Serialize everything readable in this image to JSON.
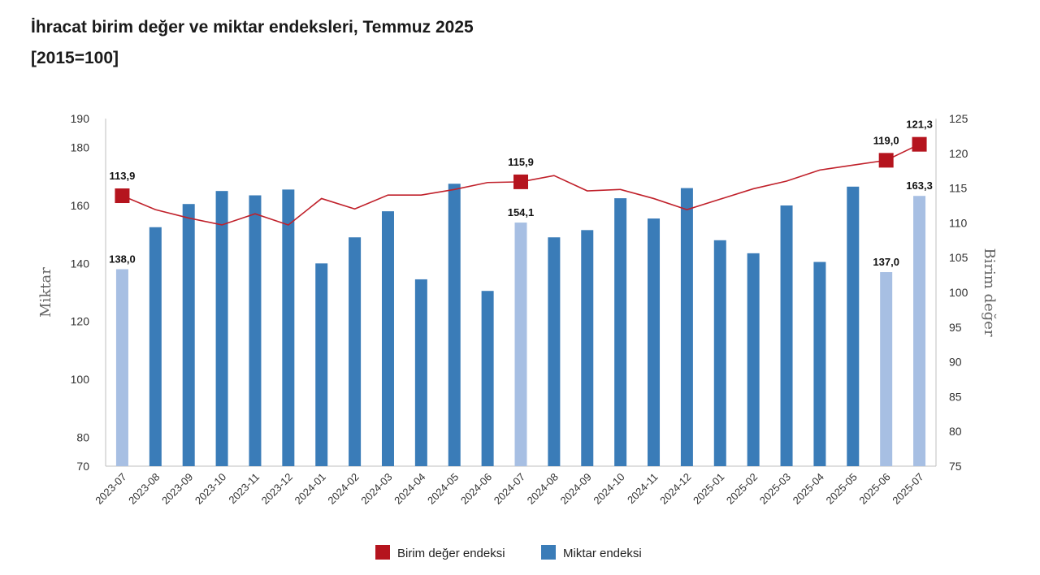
{
  "chart_data": {
    "type": "bar",
    "title": "İhracat birim değer ve miktar endeksleri, Temmuz 2025",
    "subtitle": "[2015=100]",
    "categories": [
      "2023-07",
      "2023-08",
      "2023-09",
      "2023-10",
      "2023-11",
      "2023-12",
      "2024-01",
      "2024-02",
      "2024-03",
      "2024-04",
      "2024-05",
      "2024-06",
      "2024-07",
      "2024-08",
      "2024-09",
      "2024-10",
      "2024-11",
      "2024-12",
      "2025-01",
      "2025-02",
      "2025-03",
      "2025-04",
      "2025-05",
      "2025-06",
      "2025-07"
    ],
    "y_left": {
      "label": "Miktar",
      "range": [
        70,
        190
      ],
      "ticks": [
        "70",
        "80",
        "100",
        "120",
        "140",
        "160",
        "180",
        "190"
      ]
    },
    "y_right": {
      "label": "Birim değer",
      "range": [
        75,
        125
      ],
      "ticks": [
        "75",
        "80",
        "85",
        "90",
        "95",
        "100",
        "105",
        "110",
        "115",
        "120",
        "125"
      ]
    },
    "series": [
      {
        "name": "Miktar endeksi",
        "type": "bar",
        "axis": "left",
        "color": "#3a7cb8",
        "highlight_color": "#a7bfe3",
        "highlight_indices": [
          0,
          12,
          23,
          24
        ],
        "values": [
          138.0,
          152.5,
          160.5,
          165.0,
          163.5,
          165.5,
          140.0,
          149.0,
          158.0,
          134.5,
          167.5,
          130.5,
          154.1,
          149.0,
          151.5,
          162.5,
          155.5,
          166.0,
          148.0,
          143.5,
          160.0,
          140.5,
          166.5,
          137.0,
          163.3
        ],
        "data_labels": [
          {
            "index": 0,
            "text": "138,0"
          },
          {
            "index": 12,
            "text": "154,1"
          },
          {
            "index": 23,
            "text": "137,0"
          },
          {
            "index": 24,
            "text": "163,3"
          }
        ]
      },
      {
        "name": "Birim değer endeksi",
        "type": "line",
        "axis": "right",
        "color": "#c0202a",
        "marker_color": "#b5141e",
        "marker_indices": [
          0,
          12,
          23,
          24
        ],
        "values": [
          113.9,
          111.9,
          110.7,
          109.7,
          111.3,
          109.7,
          113.5,
          112.0,
          114.0,
          114.0,
          114.8,
          115.8,
          115.9,
          116.8,
          114.6,
          114.8,
          113.5,
          111.9,
          113.4,
          114.9,
          116.0,
          117.6,
          118.3,
          119.0,
          121.3
        ],
        "data_labels": [
          {
            "index": 0,
            "text": "113,9"
          },
          {
            "index": 12,
            "text": "115,9"
          },
          {
            "index": 23,
            "text": "119,0"
          },
          {
            "index": 24,
            "text": "121,3"
          }
        ]
      }
    ],
    "legend": {
      "placement": "bottom",
      "items": [
        {
          "label": "Birim değer endeksi",
          "color": "#b5141e"
        },
        {
          "label": "Miktar endeksi",
          "color": "#3a7cb8"
        }
      ]
    },
    "grid": false
  }
}
